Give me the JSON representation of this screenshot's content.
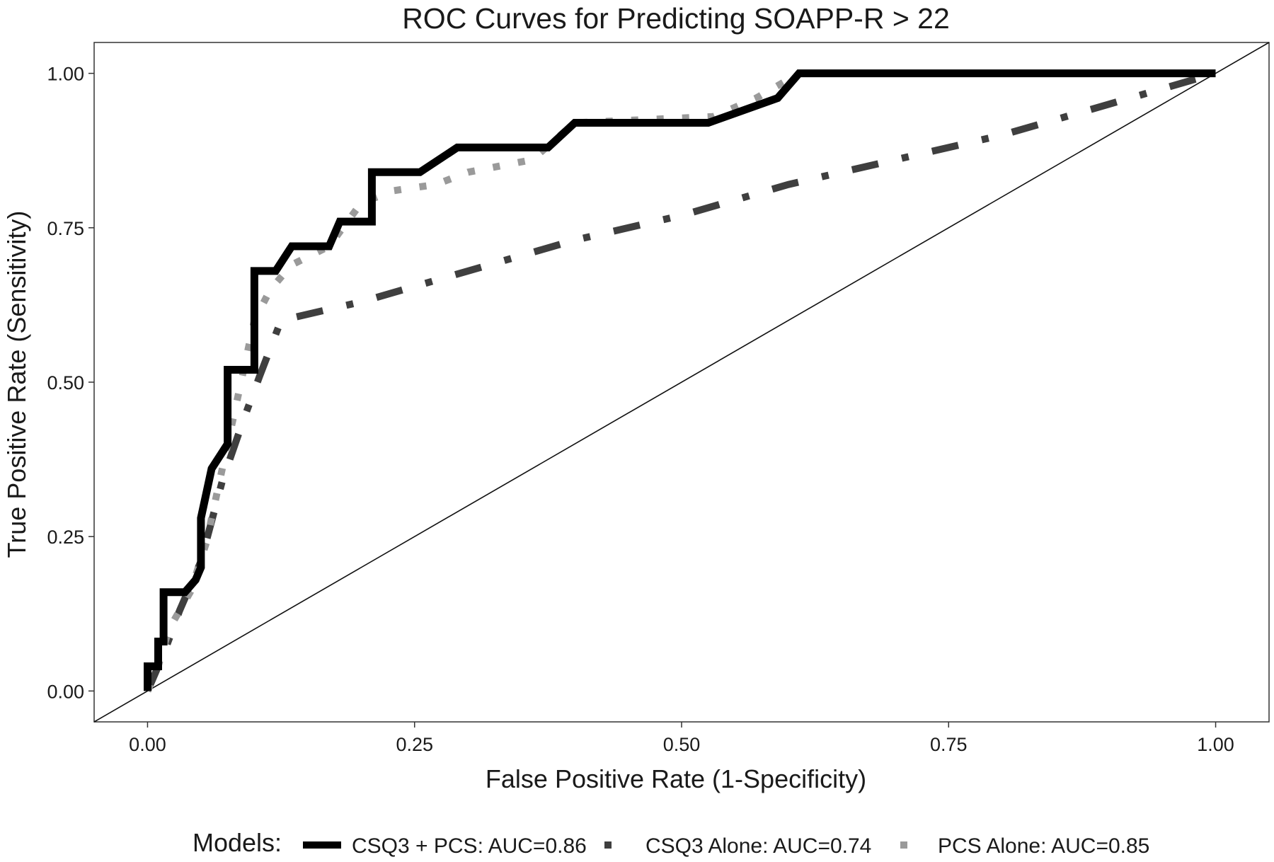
{
  "chart_data": {
    "type": "line",
    "title": "ROC Curves for Predicting SOAPP-R > 22",
    "xlabel": "False Positive Rate (1-Specificity)",
    "ylabel": "True Positive Rate (Sensitivity)",
    "xlim": [
      -0.05,
      1.05
    ],
    "ylim": [
      -0.05,
      1.05
    ],
    "x_ticks": [
      "0.00",
      "0.25",
      "0.50",
      "0.75",
      "1.00"
    ],
    "y_ticks": [
      "0.00",
      "0.25",
      "0.50",
      "0.75",
      "1.00"
    ],
    "grid": false,
    "legend_title": "Models:",
    "legend_position": "bottom",
    "reference_line": {
      "x": [
        -0.05,
        1.05
      ],
      "y": [
        -0.05,
        1.05
      ]
    },
    "series": [
      {
        "name": "CSQ3 + PCS: AUC=0.86",
        "style": "solid",
        "color": "#000000",
        "x": [
          0.0,
          0.0,
          0.01,
          0.01,
          0.015,
          0.015,
          0.035,
          0.045,
          0.05,
          0.05,
          0.06,
          0.075,
          0.075,
          0.1,
          0.1,
          0.12,
          0.135,
          0.17,
          0.18,
          0.21,
          0.21,
          0.255,
          0.29,
          0.375,
          0.4,
          0.525,
          0.59,
          0.61,
          1.0
        ],
        "y": [
          0.0,
          0.04,
          0.04,
          0.08,
          0.08,
          0.16,
          0.16,
          0.18,
          0.2,
          0.28,
          0.36,
          0.4,
          0.52,
          0.52,
          0.68,
          0.68,
          0.72,
          0.72,
          0.76,
          0.76,
          0.84,
          0.84,
          0.88,
          0.88,
          0.92,
          0.92,
          0.96,
          1.0,
          1.0
        ]
      },
      {
        "name": "CSQ3 Alone: AUC=0.74",
        "style": "dot-dash",
        "color": "#3f3f3f",
        "x": [
          0.0,
          0.015,
          0.03,
          0.05,
          0.07,
          0.09,
          0.105,
          0.125,
          0.2,
          0.3,
          0.4,
          0.5,
          0.6,
          0.7,
          0.8,
          0.9,
          1.0
        ],
        "y": [
          0.0,
          0.06,
          0.13,
          0.21,
          0.34,
          0.44,
          0.51,
          0.6,
          0.63,
          0.68,
          0.73,
          0.77,
          0.82,
          0.86,
          0.9,
          0.95,
          1.0
        ]
      },
      {
        "name": "PCS Alone: AUC=0.85",
        "style": "dotted",
        "color": "#9a9a9a",
        "x": [
          0.0,
          0.01,
          0.02,
          0.04,
          0.055,
          0.065,
          0.08,
          0.09,
          0.1,
          0.115,
          0.135,
          0.17,
          0.2,
          0.23,
          0.27,
          0.3,
          0.36,
          0.4,
          0.53,
          0.57,
          0.6,
          0.61,
          1.0
        ],
        "y": [
          0.0,
          0.04,
          0.1,
          0.16,
          0.24,
          0.32,
          0.44,
          0.52,
          0.6,
          0.65,
          0.69,
          0.72,
          0.79,
          0.81,
          0.82,
          0.84,
          0.86,
          0.92,
          0.93,
          0.96,
          0.99,
          1.0,
          1.0
        ]
      }
    ]
  }
}
